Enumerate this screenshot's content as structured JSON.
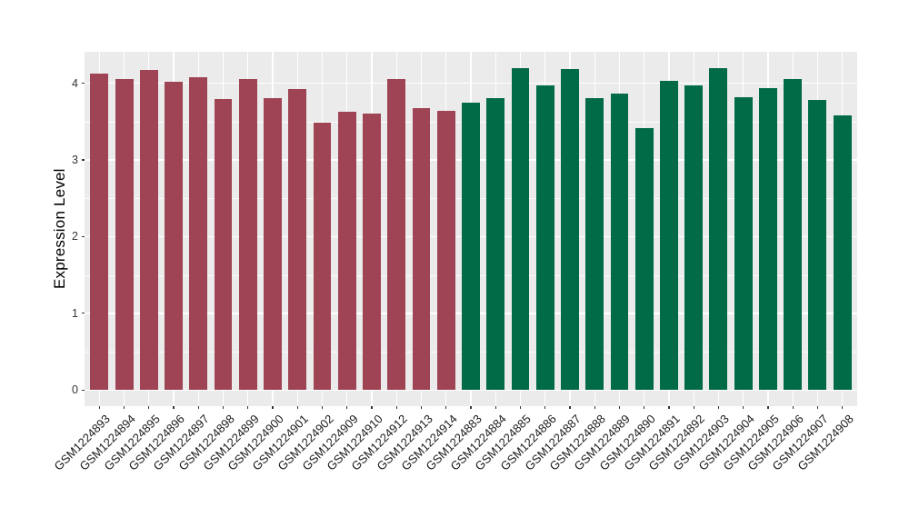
{
  "style": {
    "figure_bg": "#FFFFFF",
    "panel_bg": "#EBEBEB",
    "grid_color": "#FFFFFF",
    "tick_color": "#333333",
    "axis_text_color": "#1A1A1A",
    "axis_title_color": "#000000"
  },
  "chart_data": {
    "type": "bar",
    "title": "",
    "xlabel": "",
    "ylabel": "Expression Level",
    "ylim": [
      0,
      4.2
    ],
    "panel_range": [
      -0.21,
      4.41
    ],
    "y_major_ticks": [
      0,
      1,
      2,
      3,
      4
    ],
    "y_minor_ticks": [
      0.5,
      1.5,
      2.5,
      3.5
    ],
    "grid": "on",
    "legend_position": "none",
    "bar_width_fraction": 0.73,
    "groups": [
      {
        "name": "group-a",
        "color": "#9E4454"
      },
      {
        "name": "group-b",
        "color": "#016A46"
      }
    ],
    "bars": [
      {
        "label": "GSM1224893",
        "value": 4.13,
        "group": "group-a"
      },
      {
        "label": "GSM1224894",
        "value": 4.05,
        "group": "group-a"
      },
      {
        "label": "GSM1224895",
        "value": 4.17,
        "group": "group-a"
      },
      {
        "label": "GSM1224896",
        "value": 4.02,
        "group": "group-a"
      },
      {
        "label": "GSM1224897",
        "value": 4.08,
        "group": "group-a"
      },
      {
        "label": "GSM1224898",
        "value": 3.79,
        "group": "group-a"
      },
      {
        "label": "GSM1224899",
        "value": 4.06,
        "group": "group-a"
      },
      {
        "label": "GSM1224900",
        "value": 3.81,
        "group": "group-a"
      },
      {
        "label": "GSM1224901",
        "value": 3.93,
        "group": "group-a"
      },
      {
        "label": "GSM1224902",
        "value": 3.49,
        "group": "group-a"
      },
      {
        "label": "GSM1224909",
        "value": 3.63,
        "group": "group-a"
      },
      {
        "label": "GSM1224910",
        "value": 3.6,
        "group": "group-a"
      },
      {
        "label": "GSM1224912",
        "value": 4.06,
        "group": "group-a"
      },
      {
        "label": "GSM1224913",
        "value": 3.68,
        "group": "group-a"
      },
      {
        "label": "GSM1224914",
        "value": 3.64,
        "group": "group-a"
      },
      {
        "label": "GSM1224883",
        "value": 3.75,
        "group": "group-b"
      },
      {
        "label": "GSM1224884",
        "value": 3.8,
        "group": "group-b"
      },
      {
        "label": "GSM1224885",
        "value": 4.2,
        "group": "group-b"
      },
      {
        "label": "GSM1224886",
        "value": 3.97,
        "group": "group-b"
      },
      {
        "label": "GSM1224887",
        "value": 4.18,
        "group": "group-b"
      },
      {
        "label": "GSM1224888",
        "value": 3.81,
        "group": "group-b"
      },
      {
        "label": "GSM1224889",
        "value": 3.86,
        "group": "group-b"
      },
      {
        "label": "GSM1224890",
        "value": 3.42,
        "group": "group-b"
      },
      {
        "label": "GSM1224891",
        "value": 4.03,
        "group": "group-b"
      },
      {
        "label": "GSM1224892",
        "value": 3.97,
        "group": "group-b"
      },
      {
        "label": "GSM1224903",
        "value": 4.2,
        "group": "group-b"
      },
      {
        "label": "GSM1224904",
        "value": 3.82,
        "group": "group-b"
      },
      {
        "label": "GSM1224905",
        "value": 3.94,
        "group": "group-b"
      },
      {
        "label": "GSM1224906",
        "value": 4.05,
        "group": "group-b"
      },
      {
        "label": "GSM1224907",
        "value": 3.78,
        "group": "group-b"
      },
      {
        "label": "GSM1224908",
        "value": 3.58,
        "group": "group-b"
      }
    ]
  }
}
